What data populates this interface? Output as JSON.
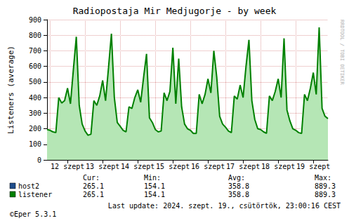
{
  "chart_data": {
    "type": "line",
    "title": "Radiopostaja Mir Medjugorje - by week",
    "y_label": "Listeners (average)",
    "categories": [
      null,
      null,
      null,
      null,
      null,
      null,
      null,
      "12 szept",
      null,
      null,
      null,
      null,
      null,
      null,
      null,
      null,
      null,
      null,
      null,
      "13 szept",
      null,
      null,
      null,
      null,
      null,
      null,
      null,
      null,
      null,
      null,
      null,
      "14 szept",
      null,
      null,
      null,
      null,
      null,
      null,
      null,
      null,
      null,
      null,
      null,
      "15 szept",
      null,
      null,
      null,
      null,
      null,
      null,
      null,
      null,
      null,
      null,
      null,
      "16 szept",
      null,
      null,
      null,
      null,
      null,
      null,
      null,
      null,
      null,
      null,
      null,
      "17 szept",
      null,
      null,
      null,
      null,
      null,
      null,
      null,
      null,
      null,
      null,
      null,
      "18 szept",
      null,
      null,
      null,
      null,
      null,
      null,
      null,
      null,
      null,
      null,
      null,
      "19 szept",
      null,
      null,
      null,
      null,
      null
    ],
    "series": [
      {
        "name": "listener",
        "color": "#008000",
        "values": [
          195,
          190,
          180,
          175,
          400,
          365,
          380,
          460,
          360,
          580,
          790,
          350,
          230,
          185,
          158,
          165,
          380,
          350,
          410,
          510,
          380,
          590,
          810,
          400,
          240,
          215,
          190,
          180,
          340,
          330,
          400,
          450,
          370,
          530,
          680,
          270,
          240,
          195,
          180,
          185,
          430,
          380,
          440,
          720,
          360,
          650,
          340,
          230,
          200,
          190,
          170,
          170,
          420,
          360,
          420,
          520,
          430,
          700,
          530,
          280,
          230,
          210,
          185,
          175,
          410,
          390,
          480,
          400,
          600,
          770,
          380,
          260,
          200,
          195,
          180,
          170,
          410,
          380,
          440,
          520,
          400,
          780,
          320,
          250,
          200,
          190,
          175,
          170,
          420,
          380,
          460,
          560,
          420,
          850,
          330,
          280,
          265
        ]
      }
    ],
    "ylim": [
      0,
      900
    ],
    "yticks": [
      0,
      100,
      200,
      300,
      400,
      500,
      600,
      700,
      800,
      900
    ],
    "grid": true
  },
  "legend_table": {
    "headers": [
      "Cur:",
      "Min:",
      "Avg:",
      "Max:"
    ],
    "rows": [
      {
        "name": "host2",
        "color": "#1f4e8c",
        "values": [
          265.1,
          154.1,
          358.8,
          889.3
        ]
      },
      {
        "name": "listener",
        "color": "#008000",
        "values": [
          265.1,
          154.1,
          358.8,
          889.3
        ]
      }
    ]
  },
  "side_text": "RRDTOOL / TOBI OETIKER",
  "footer_left": "©Eper 5.3.1",
  "footer_right": "Last update: 2024. szept. 19., csütörtök, 23:00:16 CEST"
}
